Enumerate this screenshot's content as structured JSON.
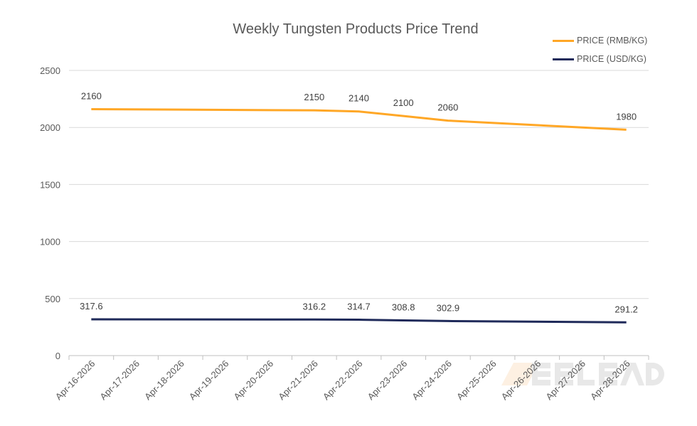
{
  "chart_data": {
    "type": "line",
    "title": "Weekly Tungsten Products Price Trend",
    "categories": [
      "Apr-16-2026",
      "Apr-17-2026",
      "Apr-18-2026",
      "Apr-19-2026",
      "Apr-20-2026",
      "Apr-21-2026",
      "Apr-22-2026",
      "Apr-23-2026",
      "Apr-24-2026",
      "Apr-25-2026",
      "Apr-26-2026",
      "Apr-27-2026",
      "Apr-28-2026"
    ],
    "series": [
      {
        "name": "PRICE (RMB/KG)",
        "color": "#FFA726",
        "values": [
          2160,
          null,
          null,
          null,
          null,
          2150,
          2140,
          2100,
          2060,
          null,
          null,
          null,
          1980
        ]
      },
      {
        "name": "PRICE (USD/KG)",
        "color": "#1F2A5A",
        "values": [
          317.6,
          null,
          null,
          null,
          null,
          316.2,
          314.7,
          308.8,
          302.9,
          null,
          null,
          null,
          291.2
        ]
      }
    ],
    "ylim": [
      0,
      2500
    ],
    "yticks": [
      0,
      500,
      1000,
      1500,
      2000,
      2500
    ],
    "grid": true,
    "legend": "top-right",
    "xlabel": "",
    "ylabel": ""
  },
  "watermark": "MEELEAD"
}
